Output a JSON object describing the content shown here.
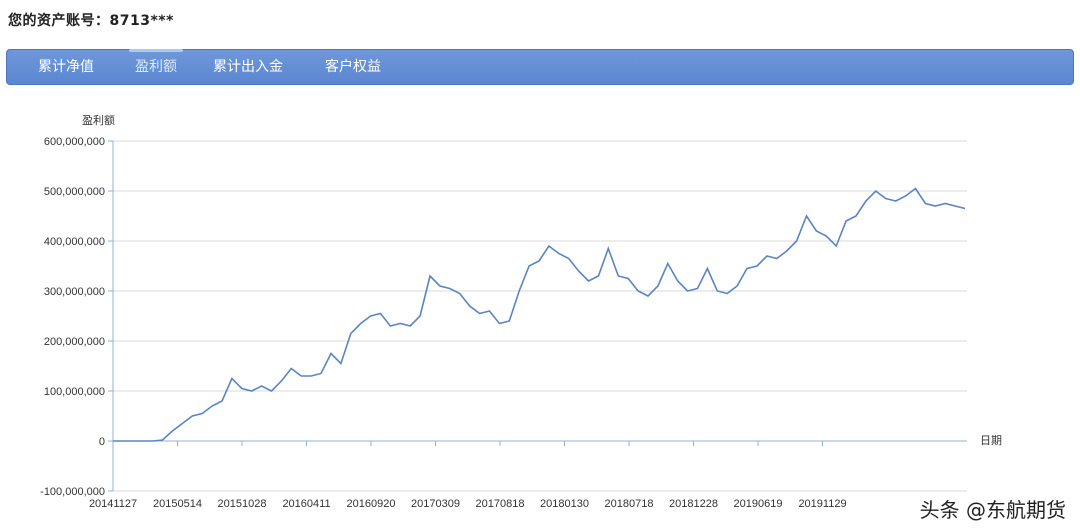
{
  "header": {
    "account_label": "您的资产账号：8713***"
  },
  "tabs": [
    {
      "label": "累计净值",
      "active": false
    },
    {
      "label": "盈利额",
      "active": true
    },
    {
      "label": "累计出入金",
      "active": false
    },
    {
      "label": "客户权益",
      "active": false
    }
  ],
  "colors": {
    "accent": "#5b86d0",
    "line": "#5b84c4"
  },
  "watermark": "头条 @东航期货",
  "chart_data": {
    "type": "line",
    "ylabel": "盈利额",
    "xlabel": "日期",
    "ylim": [
      -100000000,
      600000000
    ],
    "yticks": [
      -100000000,
      0,
      100000000,
      200000000,
      300000000,
      400000000,
      500000000,
      600000000
    ],
    "ytick_labels": [
      "-100,000,000",
      "0",
      "100,000,000",
      "200,000,000",
      "300,000,000",
      "400,000,000",
      "500,000,000",
      "600,000,000"
    ],
    "xtick_labels": [
      "20141127",
      "20150514",
      "20151028",
      "20160411",
      "20160920",
      "20170309",
      "20170818",
      "20180130",
      "20180718",
      "20181228",
      "20190619",
      "20191129"
    ],
    "grid": true,
    "series": [
      {
        "values": [
          0,
          0,
          0,
          0,
          0,
          2000000,
          20000000,
          35000000,
          50000000,
          55000000,
          70000000,
          80000000,
          125000000,
          105000000,
          100000000,
          110000000,
          100000000,
          120000000,
          145000000,
          130000000,
          130000000,
          135000000,
          175000000,
          155000000,
          215000000,
          235000000,
          250000000,
          255000000,
          230000000,
          235000000,
          230000000,
          250000000,
          330000000,
          310000000,
          305000000,
          295000000,
          270000000,
          255000000,
          260000000,
          235000000,
          240000000,
          300000000,
          350000000,
          360000000,
          390000000,
          375000000,
          365000000,
          340000000,
          320000000,
          330000000,
          385000000,
          330000000,
          325000000,
          300000000,
          290000000,
          310000000,
          355000000,
          320000000,
          300000000,
          305000000,
          345000000,
          300000000,
          295000000,
          310000000,
          345000000,
          350000000,
          370000000,
          365000000,
          380000000,
          400000000,
          450000000,
          420000000,
          410000000,
          390000000,
          440000000,
          450000000,
          480000000,
          500000000,
          485000000,
          480000000,
          490000000,
          505000000,
          475000000,
          470000000,
          475000000,
          470000000,
          465000000
        ]
      }
    ]
  }
}
